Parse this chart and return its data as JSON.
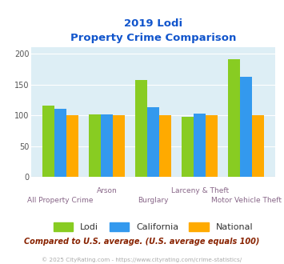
{
  "title_line1": "2019 Lodi",
  "title_line2": "Property Crime Comparison",
  "categories": [
    "All Property Crime",
    "Arson",
    "Burglary",
    "Larceny & Theft",
    "Motor Vehicle Theft"
  ],
  "lodi": [
    116,
    101,
    157,
    98,
    191
  ],
  "california": [
    110,
    101,
    113,
    103,
    163
  ],
  "national": [
    100,
    100,
    100,
    100,
    100
  ],
  "color_lodi": "#88cc22",
  "color_california": "#3399ee",
  "color_national": "#ffaa00",
  "background_chart": "#ddeef5",
  "ylim": [
    0,
    210
  ],
  "yticks": [
    0,
    50,
    100,
    150,
    200
  ],
  "note": "Compared to U.S. average. (U.S. average equals 100)",
  "copyright": "© 2025 CityRating.com - https://www.cityrating.com/crime-statistics/",
  "title_color": "#1155cc",
  "xlabel_color": "#886688",
  "note_color": "#882200",
  "copyright_color": "#aaaaaa"
}
